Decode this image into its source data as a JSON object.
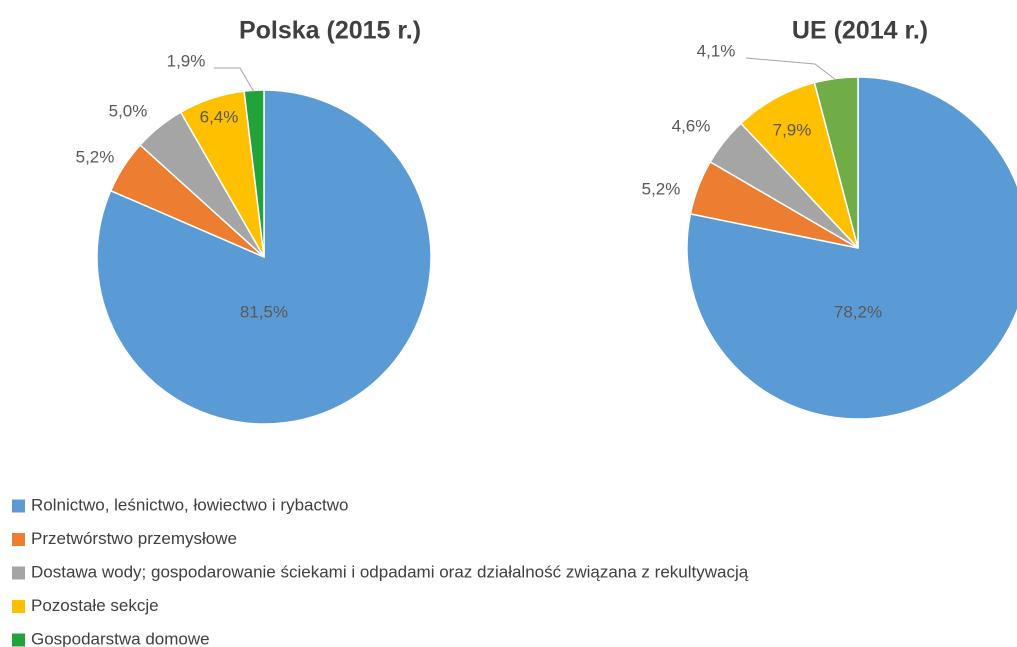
{
  "chart_data": [
    {
      "type": "pie",
      "title": "Polska (2015 r.)",
      "categories": [
        "Rolnictwo, leśnictwo, łowiectwo i rybactwo",
        "Przetwórstwo przemysłowe",
        "Dostawa wody; gospodarowanie ściekami i odpadami oraz działalność związana z rekultywacją",
        "Pozostałe sekcje",
        "Gospodarstwa domowe"
      ],
      "values": [
        81.5,
        5.2,
        5.0,
        6.4,
        1.9
      ],
      "value_labels": [
        "81,5%",
        "5,2%",
        "5,0%",
        "6,4%",
        "1,9%"
      ],
      "colors": [
        "#5b9bd5",
        "#ed7d31",
        "#a5a5a5",
        "#ffc000",
        "#22a33a"
      ]
    },
    {
      "type": "pie",
      "title": "UE (2014 r.)",
      "values": [
        78.2,
        5.2,
        4.6,
        7.9,
        4.1
      ],
      "value_labels": [
        "78,2%",
        "5,2%",
        "4,6%",
        "7,9%",
        "4,1%"
      ],
      "colors": [
        "#5b9bd5",
        "#ed7d31",
        "#a5a5a5",
        "#ffc000",
        "#70ad47"
      ]
    }
  ]
}
